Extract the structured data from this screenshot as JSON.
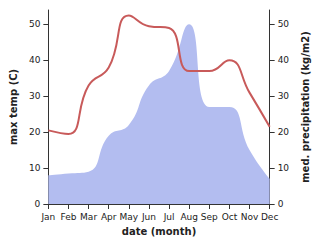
{
  "chart_data": {
    "type": "line",
    "x_label": "date (month)",
    "y_label": "max temp (C)",
    "y2_label": "med. precipitation (kg/m2)",
    "categories": [
      "Jan",
      "Feb",
      "Mar",
      "Apr",
      "May",
      "Jun",
      "Jul",
      "Aug",
      "Sep",
      "Oct",
      "Nov",
      "Dec"
    ],
    "series": [
      {
        "name": "max temp (C)",
        "type": "line",
        "color": "#c85a5a",
        "values": [
          20.5,
          19.5,
          33,
          38,
          52.5,
          49.5,
          49,
          37,
          37,
          40,
          31,
          21.5
        ]
      },
      {
        "name": "med. precipitation (kg/m2)",
        "type": "area",
        "axis": "y2",
        "color": "#b3bdf0",
        "values": [
          8,
          8.5,
          9,
          19,
          22,
          33,
          37,
          50,
          27,
          27,
          15,
          7
        ]
      }
    ],
    "ylim": [
      0,
      54
    ],
    "yticks": [
      0,
      10,
      20,
      30,
      40,
      50
    ],
    "y2lim": [
      0,
      54
    ],
    "y2ticks": [
      0,
      10,
      20,
      30,
      40,
      50
    ],
    "grid": false
  }
}
